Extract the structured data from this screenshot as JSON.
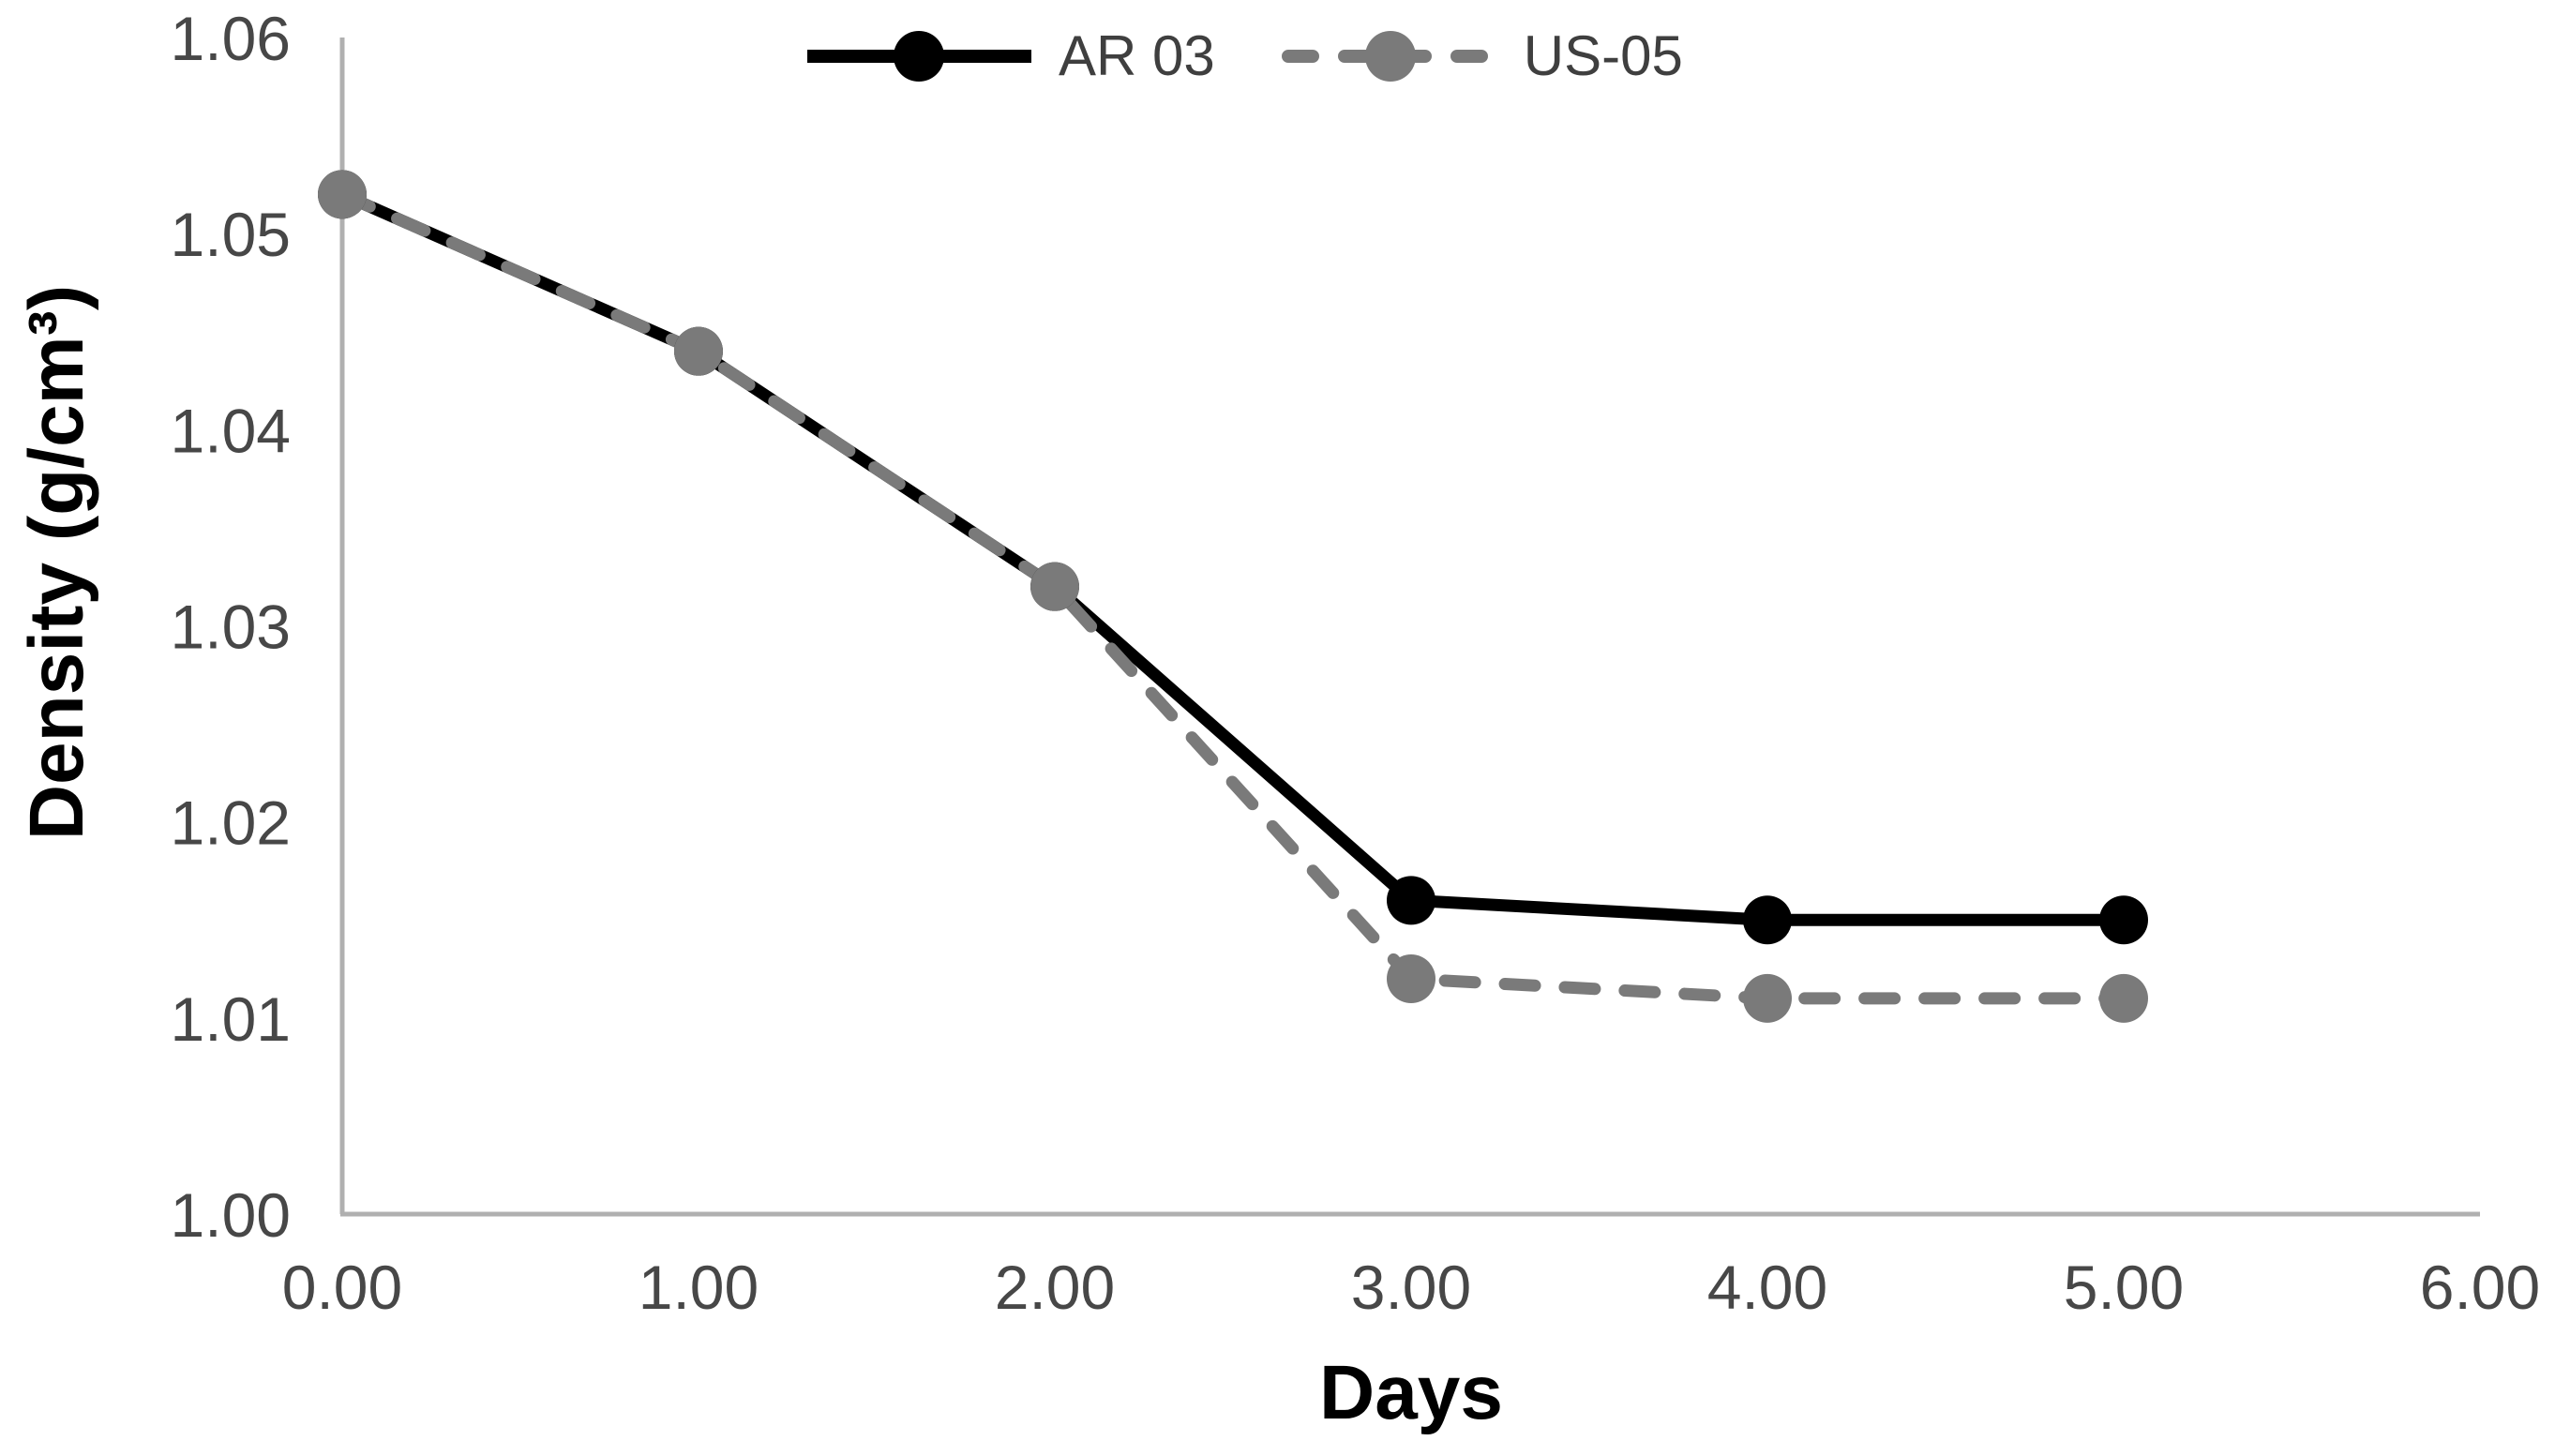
{
  "chart_data": {
    "type": "line",
    "title": "",
    "xlabel": "Days",
    "ylabel": "Density (g/cm³)",
    "x": [
      0,
      1,
      2,
      3,
      4,
      5
    ],
    "series": [
      {
        "name": "AR 03",
        "color": "#000000",
        "line_style": "solid",
        "marker": "circle",
        "values": [
          1.052,
          1.044,
          1.032,
          1.016,
          1.015,
          1.015
        ]
      },
      {
        "name": "US-05",
        "color": "#7a7a7a",
        "line_style": "dashed",
        "marker": "circle",
        "values": [
          1.052,
          1.044,
          1.032,
          1.012,
          1.011,
          1.011
        ]
      }
    ],
    "xlim": [
      0,
      6
    ],
    "ylim": [
      1.0,
      1.06
    ],
    "x_ticks": [
      "0.00",
      "1.00",
      "2.00",
      "3.00",
      "4.00",
      "5.00",
      "6.00"
    ],
    "y_ticks": [
      "1.00",
      "1.01",
      "1.02",
      "1.03",
      "1.04",
      "1.05",
      "1.06"
    ],
    "grid": false,
    "legend_position": "top-center",
    "axis_color": "#b0b0b0",
    "tick_label_color": "#474747"
  }
}
